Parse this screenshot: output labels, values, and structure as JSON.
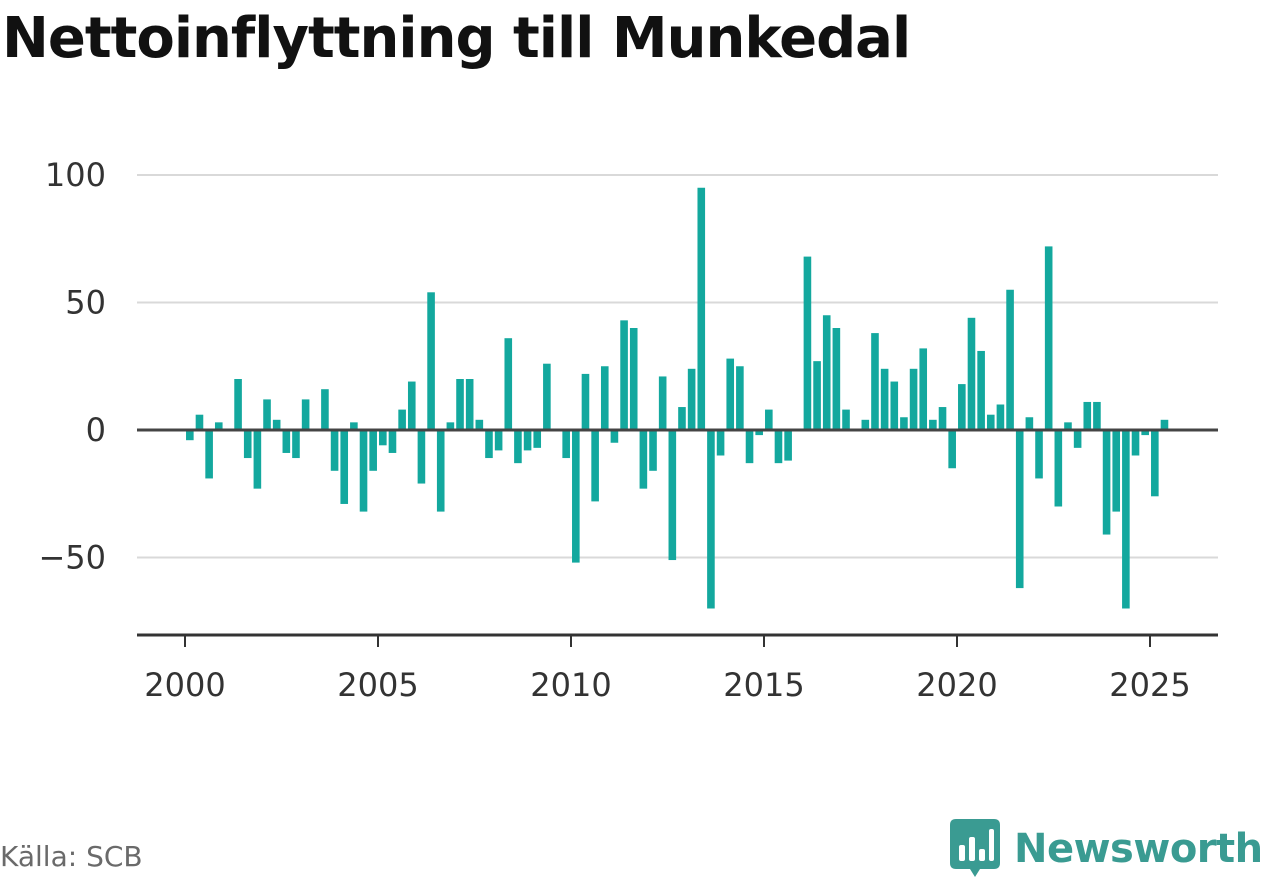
{
  "title": "Nettoinflyttning till Munkedal",
  "source": "Källa: SCB",
  "brand": {
    "name": "Newsworthy",
    "icon": "newsworthy-logo-icon"
  },
  "colors": {
    "bar": "#13a89e",
    "grid": "#d9d9d9",
    "zero": "#444444",
    "axis": "#333333",
    "brand": "#3a9b92"
  },
  "chart_data": {
    "type": "bar",
    "title": "Nettoinflyttning till Munkedal",
    "xlabel": "",
    "ylabel": "",
    "ylim": [
      -80,
      100
    ],
    "yticks": [
      100,
      50,
      0,
      -50
    ],
    "ytick_labels": [
      "100",
      "50",
      "0",
      "−50"
    ],
    "xticks": [
      2000,
      2005,
      2010,
      2015,
      2020,
      2025
    ],
    "xtick_labels": [
      "2000",
      "2005",
      "2010",
      "2015",
      "2020",
      "2025"
    ],
    "grid": true,
    "x": [
      2000.125,
      2000.375,
      2000.625,
      2000.875,
      2001.125,
      2001.375,
      2001.625,
      2001.875,
      2002.125,
      2002.375,
      2002.625,
      2002.875,
      2003.125,
      2003.375,
      2003.625,
      2003.875,
      2004.125,
      2004.375,
      2004.625,
      2004.875,
      2005.125,
      2005.375,
      2005.625,
      2005.875,
      2006.125,
      2006.375,
      2006.625,
      2006.875,
      2007.125,
      2007.375,
      2007.625,
      2007.875,
      2008.125,
      2008.375,
      2008.625,
      2008.875,
      2009.125,
      2009.375,
      2009.625,
      2009.875,
      2010.125,
      2010.375,
      2010.625,
      2010.875,
      2011.125,
      2011.375,
      2011.625,
      2011.875,
      2012.125,
      2012.375,
      2012.625,
      2012.875,
      2013.125,
      2013.375,
      2013.625,
      2013.875,
      2014.125,
      2014.375,
      2014.625,
      2014.875,
      2015.125,
      2015.375,
      2015.625,
      2015.875,
      2016.125,
      2016.375,
      2016.625,
      2016.875,
      2017.125,
      2017.375,
      2017.625,
      2017.875,
      2018.125,
      2018.375,
      2018.625,
      2018.875,
      2019.125,
      2019.375,
      2019.625,
      2019.875,
      2020.125,
      2020.375,
      2020.625,
      2020.875,
      2021.125,
      2021.375,
      2021.625,
      2021.875,
      2022.125,
      2022.375,
      2022.625,
      2022.875,
      2023.125,
      2023.375,
      2023.625,
      2023.875,
      2024.125,
      2024.375,
      2024.625,
      2024.875,
      2025.125,
      2025.375
    ],
    "values": [
      -4,
      6,
      -19,
      3,
      0,
      20,
      -11,
      -23,
      12,
      4,
      -9,
      -11,
      12,
      0,
      16,
      -16,
      -29,
      3,
      -32,
      -16,
      -6,
      -9,
      8,
      19,
      -21,
      54,
      -32,
      3,
      20,
      20,
      4,
      -11,
      -8,
      36,
      -13,
      -8,
      -7,
      26,
      0,
      -11,
      -52,
      22,
      -28,
      25,
      -5,
      43,
      40,
      -23,
      -16,
      21,
      -51,
      9,
      24,
      95,
      -70,
      -10,
      28,
      25,
      -13,
      -2,
      8,
      -13,
      -12,
      0,
      68,
      27,
      45,
      40,
      8,
      0,
      4,
      38,
      24,
      19,
      5,
      24,
      32,
      4,
      9,
      -15,
      18,
      44,
      31,
      6,
      10,
      55,
      -62,
      5,
      -19,
      72,
      -30,
      3,
      -7,
      11,
      11,
      -41,
      -32,
      -70,
      -10,
      -2,
      -26,
      4
    ]
  }
}
